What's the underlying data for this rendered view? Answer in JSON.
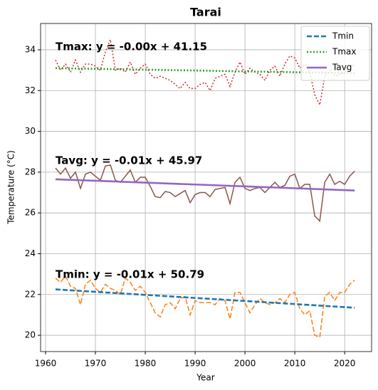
{
  "chart_data": {
    "type": "line",
    "title": "Tarai",
    "x_label": "Year",
    "y_label": "Temperature (°C)",
    "annotations": [
      "Tmax: y = -0.00x + 41.15",
      "Tavg: y = -0.01x + 45.97",
      "Tmin: y = -0.01x + 50.79"
    ],
    "xlim": [
      1959,
      2025.4
    ],
    "ylim": [
      19.2,
      35.29
    ],
    "xticks": [
      1960,
      1970,
      1980,
      1990,
      2000,
      2010,
      2020
    ],
    "yticks": [
      20,
      22,
      24,
      26,
      28,
      30,
      32,
      34
    ],
    "grid": true,
    "legend": "upper right",
    "x": [
      1962,
      1963,
      1964,
      1965,
      1966,
      1967,
      1968,
      1969,
      1970,
      1971,
      1972,
      1973,
      1974,
      1975,
      1976,
      1977,
      1978,
      1979,
      1980,
      1981,
      1982,
      1983,
      1984,
      1985,
      1986,
      1987,
      1988,
      1989,
      1990,
      1991,
      1992,
      1993,
      1994,
      1995,
      1996,
      1997,
      1998,
      1999,
      2000,
      2001,
      2002,
      2003,
      2004,
      2005,
      2006,
      2007,
      2008,
      2009,
      2010,
      2011,
      2012,
      2013,
      2014,
      2015,
      2016,
      2017,
      2018,
      2019,
      2020,
      2021,
      2022
    ],
    "series": [
      {
        "color": "#d62728",
        "linestyle": "dotted",
        "values": [
          33.5,
          33.0,
          33.3,
          32.9,
          33.5,
          32.9,
          33.3,
          33.3,
          33.2,
          33.0,
          33.9,
          34.5,
          33.0,
          33.1,
          32.9,
          33.4,
          32.8,
          33.1,
          33.3,
          32.8,
          32.6,
          32.7,
          32.6,
          32.5,
          32.3,
          32.1,
          32.4,
          32.1,
          32.1,
          32.3,
          32.4,
          32.0,
          32.6,
          32.7,
          32.8,
          32.2,
          32.9,
          33.4,
          32.8,
          33.1,
          32.9,
          32.8,
          32.5,
          33.0,
          33.2,
          32.7,
          33.3,
          33.7,
          33.6,
          33.1,
          33.3,
          32.9,
          31.8,
          31.3,
          32.7,
          33.0,
          32.7,
          32.8,
          32.9,
          33.1,
          33.3
        ]
      },
      {
        "color": "#8c564b",
        "linestyle": "solid",
        "values": [
          28.2,
          27.9,
          28.2,
          27.7,
          28.0,
          27.2,
          27.9,
          28.0,
          27.8,
          27.6,
          28.3,
          28.35,
          27.6,
          27.5,
          27.8,
          28.1,
          27.5,
          27.75,
          27.75,
          27.3,
          26.8,
          26.75,
          27.05,
          27.0,
          26.8,
          26.95,
          27.1,
          26.5,
          26.9,
          27.0,
          27.0,
          26.8,
          27.15,
          27.2,
          27.25,
          26.45,
          27.5,
          27.75,
          27.2,
          27.1,
          27.2,
          27.25,
          27.0,
          27.25,
          27.5,
          27.25,
          27.35,
          27.8,
          27.9,
          27.2,
          27.4,
          27.4,
          25.85,
          25.6,
          27.5,
          27.9,
          27.4,
          27.55,
          27.4,
          27.8,
          28.05
        ]
      },
      {
        "color": "#ff7f0e",
        "linestyle": "dashed",
        "values": [
          22.8,
          22.6,
          22.9,
          22.4,
          22.3,
          21.5,
          22.5,
          22.7,
          22.3,
          22.1,
          22.5,
          22.3,
          22.2,
          22.0,
          22.8,
          22.6,
          22.2,
          22.4,
          22.1,
          21.6,
          21.1,
          20.9,
          21.5,
          21.6,
          21.3,
          21.8,
          21.9,
          21.0,
          21.7,
          21.6,
          21.6,
          21.6,
          21.5,
          21.8,
          21.7,
          20.8,
          22.1,
          22.1,
          21.6,
          21.1,
          21.5,
          21.8,
          21.6,
          21.5,
          21.6,
          21.8,
          21.6,
          22.0,
          22.1,
          21.3,
          21.0,
          21.2,
          20.0,
          19.9,
          21.9,
          22.1,
          21.7,
          22.1,
          22.1,
          22.5,
          22.7
        ]
      },
      {
        "name": "Tmin",
        "color": "#1f77b4",
        "linestyle": "dashed",
        "x": [
          1962,
          2022
        ],
        "values": [
          22.25,
          21.35
        ]
      },
      {
        "name": "Tmax",
        "color": "#2ca02c",
        "linestyle": "dotted",
        "x": [
          1962,
          2022
        ],
        "values": [
          33.1,
          32.85
        ]
      },
      {
        "name": "Tavg",
        "color": "#9467bd",
        "linestyle": "solid",
        "x": [
          1962,
          2022
        ],
        "values": [
          27.65,
          27.1
        ]
      }
    ]
  }
}
